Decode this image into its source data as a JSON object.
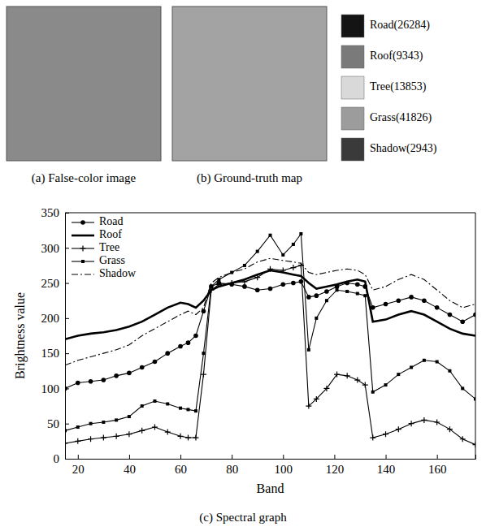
{
  "images": [
    {
      "caption": "(a) False-color image"
    },
    {
      "caption": "(b) Ground-truth map",
      "legend": [
        {
          "label": "Road(26284)",
          "color": "#141414"
        },
        {
          "label": "Roof(9343)",
          "color": "#7a7a7a"
        },
        {
          "label": "Tree(13853)",
          "color": "#d9d9d9"
        },
        {
          "label": "Grass(41826)",
          "color": "#9c9c9c"
        },
        {
          "label": "Shadow(2943)",
          "color": "#3a3a3a"
        }
      ]
    }
  ],
  "chart_data": {
    "type": "line",
    "caption": "(c) Spectral graph",
    "x_label": "Band",
    "y_label": "Brightness value",
    "x": [
      15,
      20,
      25,
      30,
      35,
      40,
      45,
      50,
      55,
      60,
      63,
      66,
      69,
      72,
      75,
      80,
      85,
      90,
      95,
      100,
      104,
      107,
      110,
      113,
      117,
      121,
      125,
      129,
      132,
      135,
      140,
      145,
      150,
      155,
      160,
      165,
      170,
      175
    ],
    "xlim": [
      15,
      175
    ],
    "xticks": [
      20,
      40,
      60,
      80,
      100,
      120,
      140,
      160
    ],
    "ylim": [
      0,
      350
    ],
    "yticks": [
      0,
      50,
      100,
      150,
      200,
      250,
      300,
      350
    ],
    "legend": "upper left",
    "series": [
      {
        "name": "Road",
        "color": "#000000",
        "marker": "circle",
        "line_style": "solid",
        "values": [
          100,
          108,
          110,
          112,
          118,
          122,
          130,
          138,
          150,
          160,
          165,
          175,
          210,
          245,
          250,
          248,
          245,
          240,
          242,
          248,
          250,
          252,
          230,
          232,
          238,
          245,
          250,
          248,
          245,
          215,
          220,
          225,
          230,
          225,
          215,
          205,
          195,
          205
        ]
      },
      {
        "name": "Roof",
        "color": "#000000",
        "marker": "none",
        "line_style": "thick",
        "values": [
          170,
          175,
          178,
          180,
          183,
          188,
          195,
          205,
          215,
          222,
          220,
          215,
          225,
          240,
          245,
          250,
          255,
          262,
          268,
          265,
          262,
          260,
          250,
          242,
          245,
          248,
          252,
          255,
          252,
          195,
          198,
          205,
          210,
          205,
          195,
          185,
          178,
          175
        ]
      },
      {
        "name": "Tree",
        "color": "#000000",
        "marker": "plus",
        "line_style": "solid",
        "values": [
          22,
          25,
          28,
          30,
          32,
          35,
          40,
          45,
          38,
          32,
          30,
          30,
          120,
          240,
          248,
          250,
          252,
          258,
          270,
          268,
          272,
          275,
          75,
          85,
          100,
          120,
          118,
          112,
          105,
          30,
          35,
          42,
          50,
          55,
          52,
          42,
          28,
          20
        ]
      },
      {
        "name": "Grass",
        "color": "#000000",
        "marker": "square",
        "line_style": "solid",
        "values": [
          40,
          45,
          50,
          52,
          55,
          60,
          75,
          82,
          78,
          72,
          70,
          68,
          150,
          245,
          255,
          265,
          275,
          295,
          318,
          290,
          305,
          320,
          155,
          200,
          225,
          240,
          238,
          235,
          232,
          95,
          105,
          120,
          130,
          140,
          138,
          125,
          100,
          85
        ]
      },
      {
        "name": "Shadow",
        "color": "#000000",
        "marker": "none",
        "line_style": "dashdot",
        "values": [
          133,
          140,
          145,
          150,
          155,
          162,
          175,
          185,
          195,
          205,
          210,
          205,
          215,
          250,
          258,
          265,
          270,
          280,
          285,
          282,
          280,
          278,
          265,
          262,
          265,
          268,
          270,
          268,
          262,
          240,
          245,
          255,
          262,
          255,
          240,
          225,
          215,
          220
        ]
      }
    ]
  }
}
